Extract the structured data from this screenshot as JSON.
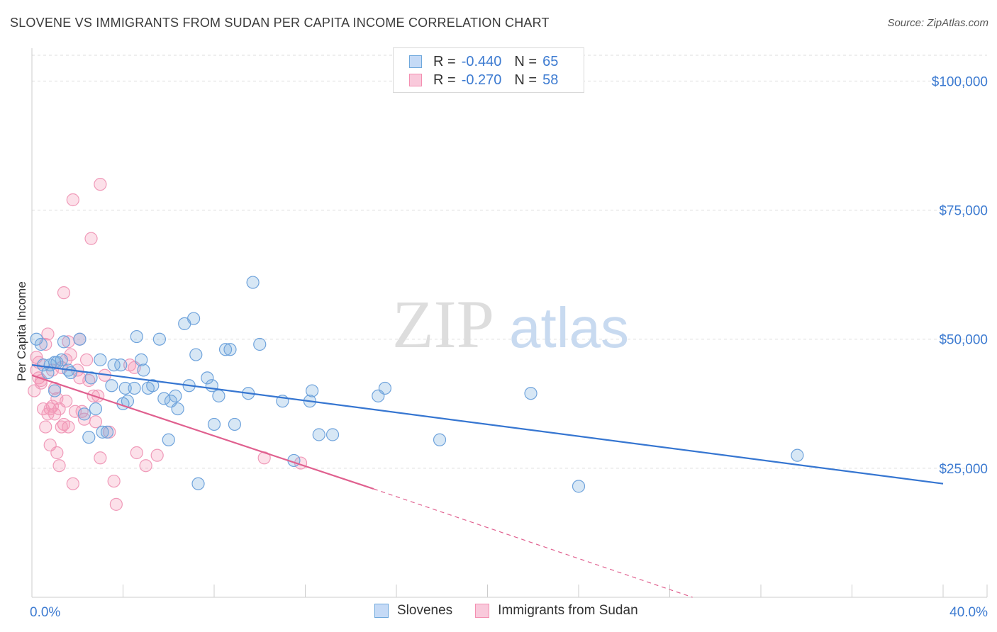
{
  "header": {
    "title": "SLOVENE VS IMMIGRANTS FROM SUDAN PER CAPITA INCOME CORRELATION CHART",
    "source": "Source: ZipAtlas.com"
  },
  "watermark": {
    "zip": "ZIP",
    "atlas": "atlas"
  },
  "legend": {
    "rows": [
      {
        "r_label": "R =",
        "r_value": "-0.440",
        "n_label": "N =",
        "n_value": "65",
        "color": "#6fa8dc"
      },
      {
        "r_label": "R =",
        "r_value": "-0.270",
        "n_label": "N =",
        "n_value": "58",
        "color": "#f48fb1"
      }
    ]
  },
  "bottom_legend": {
    "series1": "Slovenes",
    "series2": "Immigrants from Sudan"
  },
  "chart_data": {
    "type": "scatter",
    "title": "SLOVENE VS IMMIGRANTS FROM SUDAN PER CAPITA INCOME CORRELATION CHART",
    "xlabel": "",
    "ylabel": "Per Capita Income",
    "xlim": [
      0,
      40
    ],
    "ylim": [
      0,
      105000
    ],
    "x_tick_labels": [
      "0.0%",
      "40.0%"
    ],
    "y_tick_labels": [
      "$25,000",
      "$50,000",
      "$75,000",
      "$100,000"
    ],
    "y_tick_values": [
      25000,
      50000,
      75000,
      100000
    ],
    "grid": true,
    "legend_position": "top-center",
    "colors": {
      "slovenes": "#6fa8dc",
      "slovenes_line": "#3676d1",
      "sudan": "#f48fb1",
      "sudan_line": "#e0608f"
    },
    "series": [
      {
        "name": "Slovenes",
        "trend": {
          "x": [
            0,
            40
          ],
          "y": [
            45000,
            22000
          ]
        },
        "points": [
          [
            0.2,
            50000
          ],
          [
            0.4,
            49000
          ],
          [
            0.5,
            45000
          ],
          [
            0.7,
            43500
          ],
          [
            0.8,
            45000
          ],
          [
            1.0,
            45500
          ],
          [
            1.1,
            45500
          ],
          [
            1.3,
            46000
          ],
          [
            1.4,
            49500
          ],
          [
            1.6,
            44000
          ],
          [
            1.7,
            43500
          ],
          [
            2.1,
            50000
          ],
          [
            2.3,
            35500
          ],
          [
            2.5,
            31000
          ],
          [
            2.6,
            42500
          ],
          [
            2.8,
            36500
          ],
          [
            3.0,
            46000
          ],
          [
            3.1,
            32000
          ],
          [
            3.3,
            32000
          ],
          [
            3.5,
            41000
          ],
          [
            3.6,
            45000
          ],
          [
            3.9,
            45000
          ],
          [
            4.0,
            37500
          ],
          [
            4.1,
            40500
          ],
          [
            4.2,
            38000
          ],
          [
            4.5,
            40500
          ],
          [
            4.6,
            50500
          ],
          [
            4.8,
            46000
          ],
          [
            4.9,
            44000
          ],
          [
            5.1,
            40500
          ],
          [
            5.3,
            41000
          ],
          [
            5.6,
            50000
          ],
          [
            5.8,
            38500
          ],
          [
            6.0,
            30500
          ],
          [
            6.1,
            38000
          ],
          [
            6.3,
            39000
          ],
          [
            6.4,
            36500
          ],
          [
            6.7,
            53000
          ],
          [
            6.9,
            41000
          ],
          [
            7.1,
            54000
          ],
          [
            7.2,
            47000
          ],
          [
            7.3,
            22000
          ],
          [
            7.7,
            42500
          ],
          [
            7.9,
            41000
          ],
          [
            8.0,
            33500
          ],
          [
            8.2,
            39000
          ],
          [
            8.5,
            48000
          ],
          [
            8.7,
            48000
          ],
          [
            8.9,
            33500
          ],
          [
            9.5,
            39500
          ],
          [
            9.7,
            61000
          ],
          [
            10.0,
            49000
          ],
          [
            11.0,
            38000
          ],
          [
            11.5,
            26500
          ],
          [
            12.2,
            38000
          ],
          [
            12.3,
            40000
          ],
          [
            12.6,
            31500
          ],
          [
            13.2,
            31500
          ],
          [
            15.2,
            39000
          ],
          [
            15.5,
            40500
          ],
          [
            17.9,
            30500
          ],
          [
            21.9,
            39500
          ],
          [
            24.0,
            21500
          ],
          [
            33.6,
            27500
          ],
          [
            1.0,
            40000
          ]
        ]
      },
      {
        "name": "Immigrants from Sudan",
        "trend": {
          "x": [
            0,
            15
          ],
          "y": [
            43000,
            21000
          ],
          "dashed_to": {
            "x": 29,
            "y": 0
          }
        },
        "points": [
          [
            0.1,
            40000
          ],
          [
            0.2,
            44000
          ],
          [
            0.3,
            42500
          ],
          [
            0.3,
            45500
          ],
          [
            0.4,
            41500
          ],
          [
            0.5,
            36500
          ],
          [
            0.6,
            49000
          ],
          [
            0.6,
            33000
          ],
          [
            0.7,
            51000
          ],
          [
            0.8,
            36500
          ],
          [
            0.8,
            29500
          ],
          [
            0.9,
            37000
          ],
          [
            1.0,
            40500
          ],
          [
            1.0,
            35500
          ],
          [
            1.1,
            28000
          ],
          [
            1.2,
            25500
          ],
          [
            1.2,
            36500
          ],
          [
            1.3,
            44500
          ],
          [
            1.4,
            59000
          ],
          [
            1.4,
            33500
          ],
          [
            1.5,
            38000
          ],
          [
            1.5,
            46000
          ],
          [
            1.6,
            33000
          ],
          [
            1.6,
            49500
          ],
          [
            1.7,
            47000
          ],
          [
            1.8,
            77000
          ],
          [
            1.8,
            22000
          ],
          [
            1.9,
            36000
          ],
          [
            2.0,
            44000
          ],
          [
            2.1,
            50000
          ],
          [
            2.1,
            42500
          ],
          [
            2.2,
            36000
          ],
          [
            2.3,
            34500
          ],
          [
            2.4,
            46000
          ],
          [
            2.6,
            69500
          ],
          [
            2.7,
            39000
          ],
          [
            2.8,
            34000
          ],
          [
            2.9,
            39000
          ],
          [
            3.0,
            27000
          ],
          [
            3.0,
            80000
          ],
          [
            3.2,
            43000
          ],
          [
            3.4,
            32000
          ],
          [
            3.6,
            22500
          ],
          [
            3.7,
            18000
          ],
          [
            4.3,
            45000
          ],
          [
            4.5,
            44500
          ],
          [
            4.6,
            28000
          ],
          [
            5.0,
            25500
          ],
          [
            5.5,
            27500
          ],
          [
            10.2,
            27000
          ],
          [
            11.8,
            26000
          ],
          [
            0.2,
            46500
          ],
          [
            0.4,
            42000
          ],
          [
            0.9,
            44000
          ],
          [
            1.1,
            38500
          ],
          [
            2.5,
            42000
          ],
          [
            1.3,
            33000
          ],
          [
            0.7,
            35500
          ]
        ]
      }
    ]
  }
}
